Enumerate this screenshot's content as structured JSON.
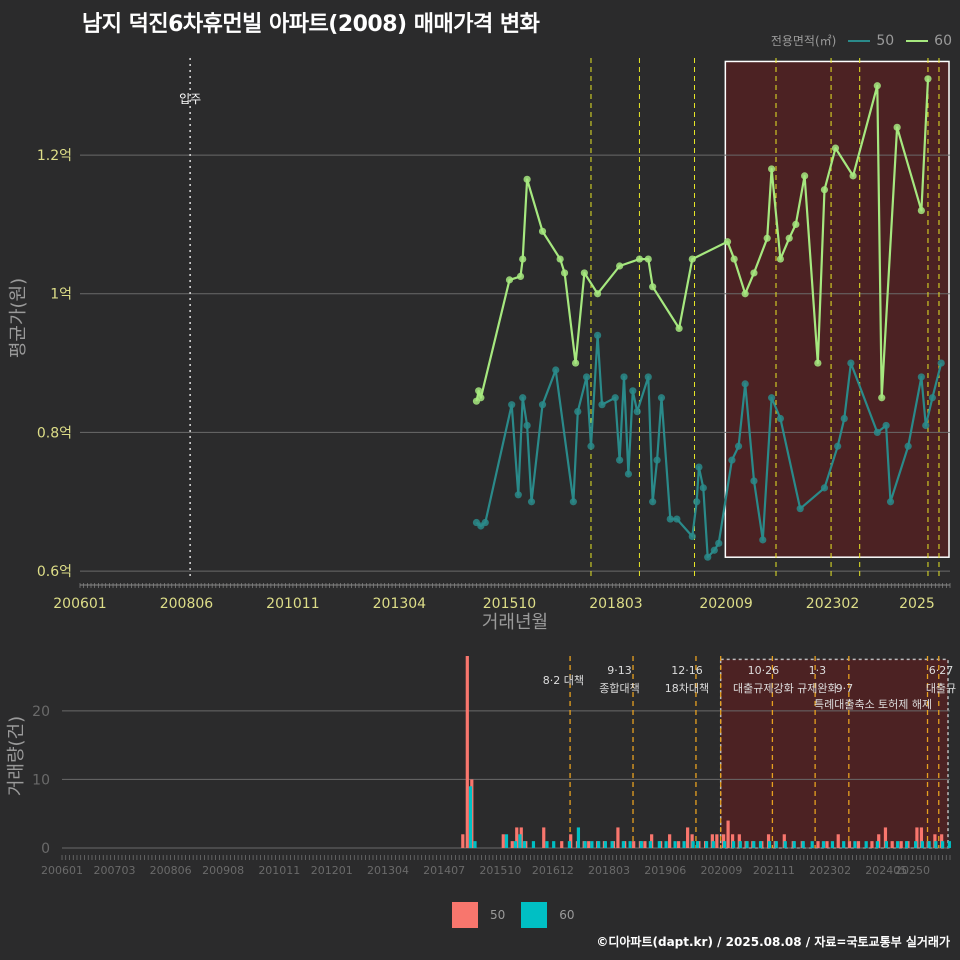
{
  "title": "남지 덕진6차휴먼빌 아파트(2008) 매매가격 변화",
  "caption": "©디아파트(dapt.kr) / 2025.08.08 / 자료=국토교통부 실거래가",
  "legend_title": "전용면적(㎡)",
  "series_colors": {
    "50": "#2a8a8a",
    "60": "#a6e87f"
  },
  "bar_colors": {
    "50": "#f8766d",
    "60": "#00bfc4"
  },
  "chart_data": [
    {
      "type": "line",
      "title": "남지 덕진6차휴먼빌 아파트(2008) 매매가격 변화",
      "xlabel": "거래년월",
      "ylabel": "평균가(원)",
      "x_ticks": [
        "200601",
        "200806",
        "201011",
        "201304",
        "201510",
        "201803",
        "202009",
        "202302",
        "2025"
      ],
      "y_ticks": [
        {
          "v": 0.6,
          "label": "0.6억"
        },
        {
          "v": 0.8,
          "label": "0.8억"
        },
        {
          "v": 1.0,
          "label": "1억"
        },
        {
          "v": 1.2,
          "label": "1.2억"
        }
      ],
      "ylim": [
        0.59,
        1.34
      ],
      "xlim": [
        2006.0,
        2025.75
      ],
      "annotation": {
        "label": "입주",
        "x": 2008.5
      },
      "policy_lines_x": [
        2017.6,
        2018.7,
        2019.95,
        2021.8,
        2023.05,
        2023.7,
        2025.25,
        2025.5
      ],
      "highlight_range": [
        2020.65,
        2025.75
      ],
      "series": [
        {
          "name": "50",
          "values": [
            [
              2015.0,
              0.67
            ],
            [
              2015.1,
              0.665
            ],
            [
              2015.2,
              0.67
            ],
            [
              2015.8,
              0.84
            ],
            [
              2015.95,
              0.71
            ],
            [
              2016.05,
              0.85
            ],
            [
              2016.15,
              0.81
            ],
            [
              2016.25,
              0.7
            ],
            [
              2016.5,
              0.84
            ],
            [
              2016.8,
              0.89
            ],
            [
              2017.2,
              0.7
            ],
            [
              2017.3,
              0.83
            ],
            [
              2017.5,
              0.88
            ],
            [
              2017.6,
              0.78
            ],
            [
              2017.75,
              0.94
            ],
            [
              2017.85,
              0.84
            ],
            [
              2018.15,
              0.85
            ],
            [
              2018.25,
              0.76
            ],
            [
              2018.35,
              0.88
            ],
            [
              2018.45,
              0.74
            ],
            [
              2018.55,
              0.86
            ],
            [
              2018.65,
              0.83
            ],
            [
              2018.9,
              0.88
            ],
            [
              2019.0,
              0.7
            ],
            [
              2019.1,
              0.76
            ],
            [
              2019.2,
              0.85
            ],
            [
              2019.4,
              0.675
            ],
            [
              2019.55,
              0.675
            ],
            [
              2019.9,
              0.65
            ],
            [
              2020.0,
              0.7
            ],
            [
              2020.05,
              0.75
            ],
            [
              2020.15,
              0.72
            ],
            [
              2020.25,
              0.62
            ],
            [
              2020.4,
              0.63
            ],
            [
              2020.5,
              0.64
            ],
            [
              2020.8,
              0.76
            ],
            [
              2020.95,
              0.78
            ],
            [
              2021.1,
              0.87
            ],
            [
              2021.3,
              0.73
            ],
            [
              2021.5,
              0.645
            ],
            [
              2021.7,
              0.85
            ],
            [
              2021.9,
              0.82
            ],
            [
              2022.35,
              0.69
            ],
            [
              2022.9,
              0.72
            ],
            [
              2023.2,
              0.78
            ],
            [
              2023.35,
              0.82
            ],
            [
              2023.5,
              0.9
            ],
            [
              2024.1,
              0.8
            ],
            [
              2024.3,
              0.81
            ],
            [
              2024.4,
              0.7
            ],
            [
              2024.8,
              0.78
            ],
            [
              2025.1,
              0.88
            ],
            [
              2025.2,
              0.81
            ],
            [
              2025.35,
              0.85
            ],
            [
              2025.55,
              0.9
            ]
          ]
        },
        {
          "name": "60",
          "values": [
            [
              2015.0,
              0.845
            ],
            [
              2015.05,
              0.86
            ],
            [
              2015.1,
              0.85
            ],
            [
              2015.75,
              1.02
            ],
            [
              2016.0,
              1.025
            ],
            [
              2016.05,
              1.05
            ],
            [
              2016.15,
              1.165
            ],
            [
              2016.5,
              1.09
            ],
            [
              2016.9,
              1.05
            ],
            [
              2017.0,
              1.03
            ],
            [
              2017.25,
              0.9
            ],
            [
              2017.45,
              1.03
            ],
            [
              2017.75,
              1.0
            ],
            [
              2018.25,
              1.04
            ],
            [
              2018.7,
              1.05
            ],
            [
              2018.9,
              1.05
            ],
            [
              2019.0,
              1.01
            ],
            [
              2019.6,
              0.95
            ],
            [
              2019.9,
              1.05
            ],
            [
              2020.7,
              1.075
            ],
            [
              2020.85,
              1.05
            ],
            [
              2021.1,
              1.0
            ],
            [
              2021.3,
              1.03
            ],
            [
              2021.6,
              1.08
            ],
            [
              2021.7,
              1.18
            ],
            [
              2021.9,
              1.05
            ],
            [
              2022.1,
              1.08
            ],
            [
              2022.25,
              1.1
            ],
            [
              2022.45,
              1.17
            ],
            [
              2022.75,
              0.9
            ],
            [
              2022.9,
              1.15
            ],
            [
              2023.15,
              1.21
            ],
            [
              2023.55,
              1.17
            ],
            [
              2024.1,
              1.3
            ],
            [
              2024.2,
              0.85
            ],
            [
              2024.55,
              1.24
            ],
            [
              2025.1,
              1.12
            ],
            [
              2025.25,
              1.31
            ]
          ]
        }
      ]
    },
    {
      "type": "bar",
      "ylabel": "거래량(건)",
      "x_ticks": [
        "200601",
        "200703",
        "200806",
        "200908",
        "201011",
        "201201",
        "201304",
        "201407",
        "201510",
        "201612",
        "201803",
        "201906",
        "202009",
        "202111",
        "202302",
        "202405",
        "20250"
      ],
      "y_ticks": [
        0,
        10,
        20
      ],
      "ylim": [
        0,
        28
      ],
      "highlight_range": [
        2020.65,
        2025.75
      ],
      "policy_lines_x": [
        2017.3,
        2018.7,
        2020.1,
        2020.65,
        2021.8,
        2022.75,
        2023.5,
        2025.25,
        2025.5
      ],
      "policy_labels": [
        {
          "x": 2017.15,
          "row": 0,
          "text": "8·2 대책"
        },
        {
          "x": 2018.4,
          "row": 0,
          "text": "9·13"
        },
        {
          "x": 2018.4,
          "row": 1,
          "text": "종합대책"
        },
        {
          "x": 2019.9,
          "row": 0,
          "text": "12·16"
        },
        {
          "x": 2019.9,
          "row": 1,
          "text": "18차대책"
        },
        {
          "x": 2021.6,
          "row": 0,
          "text": "10·26"
        },
        {
          "x": 2021.6,
          "row": 1,
          "text": "대출규제강화"
        },
        {
          "x": 2022.8,
          "row": 0,
          "text": "1·3"
        },
        {
          "x": 2022.8,
          "row": 1,
          "text": "규제완화"
        },
        {
          "x": 2023.4,
          "row": 2,
          "text": "특례대출축소"
        },
        {
          "x": 2023.4,
          "row": 1,
          "text": "9·7"
        },
        {
          "x": 2024.75,
          "row": 2,
          "text": "토허제 해제"
        },
        {
          "x": 2025.55,
          "row": 0,
          "text": "6·27"
        },
        {
          "x": 2025.55,
          "row": 1,
          "text": "대출규"
        }
      ],
      "series": [
        {
          "name": "50",
          "values": [
            [
              2014.95,
              2
            ],
            [
              2015.05,
              28
            ],
            [
              2015.15,
              10
            ],
            [
              2015.85,
              2
            ],
            [
              2016.05,
              1
            ],
            [
              2016.15,
              3
            ],
            [
              2016.25,
              3
            ],
            [
              2016.35,
              1
            ],
            [
              2016.75,
              3
            ],
            [
              2017.15,
              1
            ],
            [
              2017.35,
              2
            ],
            [
              2017.5,
              1
            ],
            [
              2017.65,
              1
            ],
            [
              2017.75,
              1
            ],
            [
              2017.95,
              1
            ],
            [
              2018.1,
              1
            ],
            [
              2018.3,
              1
            ],
            [
              2018.4,
              3
            ],
            [
              2018.55,
              1
            ],
            [
              2018.75,
              1
            ],
            [
              2018.9,
              1
            ],
            [
              2019.0,
              1
            ],
            [
              2019.15,
              2
            ],
            [
              2019.35,
              1
            ],
            [
              2019.55,
              2
            ],
            [
              2019.75,
              1
            ],
            [
              2019.95,
              3
            ],
            [
              2020.05,
              2
            ],
            [
              2020.2,
              1
            ],
            [
              2020.35,
              1
            ],
            [
              2020.5,
              2
            ],
            [
              2020.6,
              2
            ],
            [
              2020.75,
              2
            ],
            [
              2020.85,
              4
            ],
            [
              2020.95,
              2
            ],
            [
              2021.1,
              2
            ],
            [
              2021.25,
              1
            ],
            [
              2021.4,
              1
            ],
            [
              2021.6,
              1
            ],
            [
              2021.75,
              2
            ],
            [
              2021.9,
              1
            ],
            [
              2022.1,
              2
            ],
            [
              2022.3,
              1
            ],
            [
              2022.5,
              1
            ],
            [
              2022.85,
              1
            ],
            [
              2023.05,
              1
            ],
            [
              2023.3,
              2
            ],
            [
              2023.55,
              1
            ],
            [
              2023.75,
              1
            ],
            [
              2024.05,
              1
            ],
            [
              2024.2,
              2
            ],
            [
              2024.35,
              3
            ],
            [
              2024.5,
              1
            ],
            [
              2024.7,
              1
            ],
            [
              2024.85,
              1
            ],
            [
              2025.05,
              3
            ],
            [
              2025.15,
              3
            ],
            [
              2025.3,
              1
            ],
            [
              2025.45,
              2
            ],
            [
              2025.6,
              2
            ]
          ]
        },
        {
          "name": "60",
          "values": [
            [
              2015.05,
              9
            ],
            [
              2015.15,
              1
            ],
            [
              2015.85,
              2
            ],
            [
              2016.05,
              1
            ],
            [
              2016.15,
              2
            ],
            [
              2016.25,
              1
            ],
            [
              2016.45,
              1
            ],
            [
              2016.75,
              1
            ],
            [
              2016.9,
              1
            ],
            [
              2017.25,
              1
            ],
            [
              2017.45,
              3
            ],
            [
              2017.6,
              1
            ],
            [
              2017.75,
              1
            ],
            [
              2017.9,
              1
            ],
            [
              2018.05,
              1
            ],
            [
              2018.2,
              1
            ],
            [
              2018.45,
              1
            ],
            [
              2018.6,
              1
            ],
            [
              2018.85,
              1
            ],
            [
              2019.05,
              1
            ],
            [
              2019.25,
              1
            ],
            [
              2019.4,
              1
            ],
            [
              2019.6,
              1
            ],
            [
              2019.8,
              1
            ],
            [
              2020.0,
              1
            ],
            [
              2020.1,
              1
            ],
            [
              2020.3,
              1
            ],
            [
              2020.45,
              1
            ],
            [
              2020.7,
              1
            ],
            [
              2020.9,
              1
            ],
            [
              2021.05,
              1
            ],
            [
              2021.2,
              1
            ],
            [
              2021.35,
              1
            ],
            [
              2021.5,
              1
            ],
            [
              2021.7,
              1
            ],
            [
              2021.85,
              1
            ],
            [
              2022.05,
              1
            ],
            [
              2022.25,
              1
            ],
            [
              2022.45,
              1
            ],
            [
              2022.65,
              1
            ],
            [
              2022.9,
              1
            ],
            [
              2023.1,
              1
            ],
            [
              2023.35,
              1
            ],
            [
              2023.6,
              1
            ],
            [
              2023.85,
              1
            ],
            [
              2024.1,
              1
            ],
            [
              2024.3,
              1
            ],
            [
              2024.55,
              1
            ],
            [
              2024.75,
              1
            ],
            [
              2024.95,
              1
            ],
            [
              2025.1,
              1
            ],
            [
              2025.25,
              1
            ],
            [
              2025.4,
              1
            ],
            [
              2025.55,
              1
            ],
            [
              2025.7,
              1
            ]
          ]
        }
      ]
    }
  ]
}
